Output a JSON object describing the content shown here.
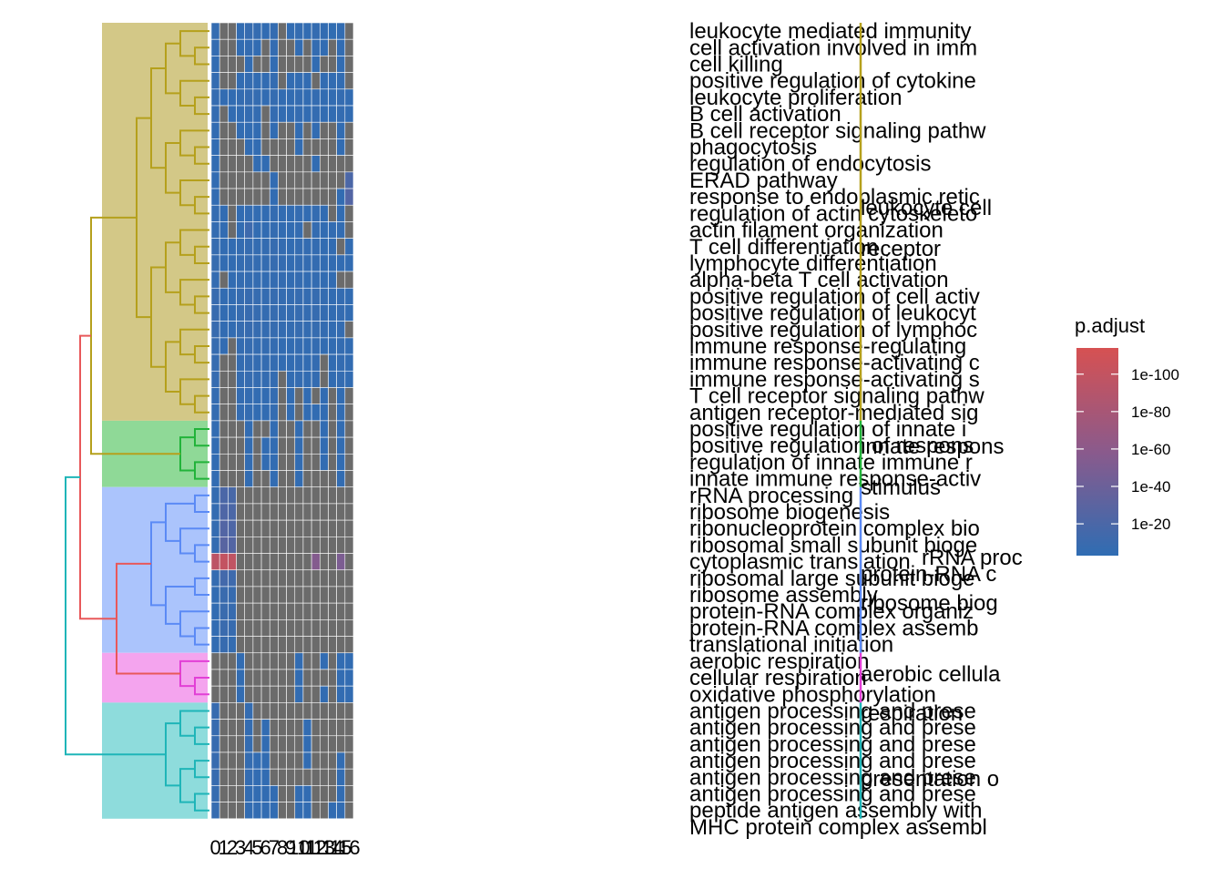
{
  "chart_data": {
    "type": "heatmap",
    "columns": [
      "0",
      "1",
      "2",
      "3",
      "4",
      "5",
      "6",
      "7",
      "8",
      "9",
      "10",
      "11",
      "12",
      "13",
      "14",
      "15",
      "16"
    ],
    "rows": [
      "leukocyte mediated immunity",
      "cell activation involved in imm",
      "cell killing",
      "positive regulation of cytokine",
      "leukocyte proliferation",
      "B cell activation",
      "B cell receptor signaling pathw",
      "phagocytosis",
      "regulation of endocytosis",
      "ERAD pathway",
      "response to endoplasmic retic",
      "regulation of actin cytoskeleto",
      "actin filament organization",
      "T cell differentiation",
      "lymphocyte differentiation",
      "alpha-beta T cell activation",
      "positive regulation of cell activ",
      "positive regulation of leukocyt",
      "positive regulation of lymphoc",
      "immune response-regulating",
      "immune response-activating c",
      "immune response-activating s",
      "T cell receptor signaling pathw",
      "antigen receptor-mediated sig",
      "positive regulation of innate i",
      "positive regulation of respons",
      "regulation of innate immune r",
      "innate immune response-activ",
      "rRNA processing",
      "ribosome biogenesis",
      "ribonucleoprotein complex bio",
      "ribosomal small subunit bioge",
      "cytoplasmic translation",
      "ribosomal large subunit bioge",
      "ribosome assembly",
      "protein-RNA complex organiz",
      "protein-RNA complex assemb",
      "translational initiation",
      "aerobic respiration",
      "cellular respiration",
      "oxidative phosphorylation",
      "antigen processing and prese",
      "antigen processing and prese",
      "antigen processing and prese",
      "antigen processing and prese",
      "antigen processing and prese",
      "antigen processing and prese",
      "peptide antigen assembly with",
      "MHC protein complex assembl"
    ],
    "cluster_labels": [
      "leukocyte cell",
      "receptor",
      "innate respons",
      "stimulus",
      "rRNA proc",
      "protein-RNA c",
      "ribosome biog",
      "aerobic cellula",
      "respiration",
      "presentation o"
    ],
    "values": [
      [
        1e-06,
        null,
        null,
        1e-05,
        1e-07,
        1e-06,
        1e-05,
        1e-06,
        null,
        1e-05,
        1e-06,
        1e-05,
        1e-06,
        1e-05,
        0.0001,
        1e-05,
        null
      ],
      [
        1e-06,
        null,
        null,
        1e-05,
        1e-06,
        1e-05,
        null,
        1e-06,
        null,
        null,
        1e-05,
        null,
        1e-06,
        1e-05,
        null,
        1e-05,
        null
      ],
      [
        1e-05,
        null,
        null,
        null,
        1e-05,
        null,
        null,
        1e-05,
        null,
        null,
        null,
        null,
        1e-05,
        null,
        null,
        1e-05,
        null
      ],
      [
        1e-06,
        null,
        null,
        1e-05,
        1e-06,
        1e-05,
        1e-05,
        1e-06,
        null,
        1e-05,
        1e-05,
        1e-05,
        null,
        1e-05,
        1e-05,
        1e-05,
        null
      ],
      [
        1e-06,
        1e-05,
        1e-05,
        1e-06,
        1e-07,
        1e-06,
        1e-05,
        1e-06,
        1e-05,
        1e-05,
        1e-06,
        1e-05,
        1e-06,
        1e-05,
        1e-05,
        1e-06,
        1e-05
      ],
      [
        1e-06,
        null,
        1e-05,
        1e-05,
        1e-06,
        1e-06,
        null,
        1e-06,
        1e-05,
        1e-05,
        1e-06,
        1e-05,
        1e-06,
        1e-05,
        1e-05,
        1e-06,
        1e-05
      ],
      [
        1e-05,
        null,
        null,
        1e-05,
        1e-05,
        1e-05,
        null,
        1e-05,
        null,
        null,
        1e-05,
        null,
        1e-05,
        null,
        null,
        1e-05,
        null
      ],
      [
        1e-05,
        null,
        null,
        null,
        1e-05,
        1e-05,
        null,
        null,
        null,
        null,
        1e-05,
        null,
        null,
        null,
        null,
        1e-05,
        null
      ],
      [
        1e-05,
        null,
        null,
        null,
        null,
        1e-05,
        1e-05,
        null,
        null,
        null,
        null,
        null,
        1e-05,
        null,
        null,
        null,
        null
      ],
      [
        1e-05,
        null,
        null,
        null,
        null,
        null,
        null,
        1e-05,
        null,
        null,
        null,
        null,
        null,
        null,
        null,
        null,
        1e-20
      ],
      [
        1e-05,
        null,
        null,
        null,
        null,
        null,
        null,
        1e-05,
        null,
        null,
        null,
        null,
        null,
        null,
        null,
        1e-05,
        1e-25
      ],
      [
        1e-06,
        1e-05,
        null,
        1e-05,
        1e-06,
        1e-05,
        1e-05,
        1e-06,
        1e-05,
        1e-05,
        1e-06,
        1e-05,
        1e-06,
        1e-05,
        null,
        1e-05,
        null
      ],
      [
        1e-06,
        1e-05,
        null,
        1e-05,
        1e-12,
        1e-05,
        1e-05,
        1e-06,
        1e-05,
        1e-05,
        1e-06,
        null,
        1e-06,
        1e-05,
        1e-05,
        1e-05,
        null
      ],
      [
        1e-07,
        1e-05,
        1e-05,
        1e-06,
        1e-07,
        1e-06,
        1e-06,
        1e-07,
        1e-06,
        1e-05,
        1e-06,
        1e-06,
        1e-06,
        1e-05,
        1e-05,
        null,
        1e-05
      ],
      [
        1e-07,
        1e-05,
        1e-05,
        1e-06,
        1e-07,
        1e-06,
        1e-06,
        1e-07,
        1e-06,
        1e-05,
        1e-06,
        1e-06,
        1e-06,
        1e-05,
        1e-05,
        1e-05,
        1e-05
      ],
      [
        1e-06,
        null,
        1e-05,
        1e-06,
        1e-06,
        1e-06,
        1e-05,
        1e-06,
        1e-06,
        1e-05,
        1e-06,
        1e-05,
        1e-06,
        1e-05,
        1e-05,
        null,
        null
      ],
      [
        1e-08,
        1e-05,
        1e-05,
        1e-07,
        1e-08,
        1e-07,
        1e-06,
        1e-07,
        1e-06,
        1e-06,
        1e-07,
        1e-06,
        1e-07,
        1e-06,
        1e-05,
        1e-06,
        1e-05
      ],
      [
        1e-08,
        1e-05,
        1e-05,
        1e-07,
        1e-08,
        1e-07,
        1e-06,
        1e-07,
        1e-06,
        1e-06,
        1e-07,
        1e-06,
        1e-07,
        1e-06,
        1e-05,
        1e-06,
        1e-05
      ],
      [
        1e-08,
        1e-05,
        1e-05,
        1e-07,
        1e-08,
        1e-07,
        1e-06,
        1e-07,
        1e-06,
        1e-06,
        1e-07,
        1e-06,
        1e-07,
        1e-06,
        1e-05,
        1e-06,
        null
      ],
      [
        1e-07,
        1e-05,
        null,
        1e-06,
        1e-07,
        1e-06,
        1e-06,
        1e-06,
        1e-05,
        1e-05,
        1e-06,
        1e-05,
        1e-06,
        1e-05,
        1e-05,
        1e-06,
        1e-05
      ],
      [
        1e-07,
        null,
        null,
        1e-06,
        1e-07,
        1e-06,
        1e-06,
        1e-06,
        1e-05,
        1e-05,
        1e-06,
        1e-05,
        1e-06,
        null,
        1e-05,
        1e-06,
        1e-05
      ],
      [
        1e-07,
        null,
        null,
        1e-06,
        1e-07,
        1e-06,
        1e-06,
        1e-06,
        null,
        1e-05,
        1e-06,
        1e-05,
        1e-06,
        null,
        1e-05,
        1e-06,
        1e-05
      ],
      [
        1e-06,
        null,
        null,
        1e-06,
        1e-06,
        1e-05,
        1e-05,
        1e-06,
        null,
        1e-05,
        null,
        1e-05,
        null,
        1e-05,
        null,
        1e-05,
        null
      ],
      [
        1e-06,
        null,
        null,
        1e-06,
        1e-06,
        1e-05,
        1e-05,
        1e-06,
        null,
        1e-05,
        null,
        1e-05,
        1e-05,
        1e-05,
        null,
        1e-05,
        null
      ],
      [
        1e-05,
        null,
        null,
        null,
        1e-05,
        null,
        null,
        1e-05,
        null,
        null,
        1e-05,
        null,
        null,
        1e-05,
        null,
        1e-05,
        null
      ],
      [
        1e-05,
        null,
        null,
        null,
        1e-05,
        null,
        1e-05,
        1e-05,
        null,
        null,
        1e-05,
        null,
        null,
        1e-05,
        null,
        1e-05,
        null
      ],
      [
        1e-05,
        null,
        null,
        null,
        1e-05,
        null,
        1e-05,
        1e-05,
        null,
        null,
        1e-05,
        null,
        null,
        1e-05,
        null,
        1e-05,
        null
      ],
      [
        1e-05,
        null,
        null,
        null,
        1e-05,
        null,
        null,
        1e-05,
        null,
        null,
        1e-05,
        null,
        null,
        null,
        null,
        1e-05,
        null
      ],
      [
        1e-06,
        1e-20,
        1e-18,
        null,
        null,
        null,
        null,
        null,
        null,
        null,
        null,
        null,
        null,
        null,
        null,
        null,
        null
      ],
      [
        1e-06,
        1e-22,
        1e-20,
        null,
        null,
        null,
        null,
        null,
        null,
        null,
        null,
        null,
        null,
        null,
        null,
        null,
        null
      ],
      [
        1e-06,
        1e-25,
        1e-22,
        null,
        null,
        null,
        null,
        null,
        null,
        null,
        null,
        null,
        null,
        null,
        null,
        null,
        null
      ],
      [
        1e-06,
        1e-28,
        1e-25,
        null,
        null,
        null,
        null,
        null,
        null,
        null,
        null,
        null,
        null,
        null,
        null,
        null,
        null
      ],
      [
        1e-95,
        1e-100,
        1e-98,
        null,
        null,
        null,
        null,
        null,
        null,
        null,
        null,
        null,
        1e-55,
        null,
        null,
        1e-50,
        null
      ],
      [
        1e-06,
        1e-15,
        1e-12,
        null,
        null,
        null,
        null,
        null,
        null,
        null,
        null,
        null,
        null,
        null,
        null,
        null,
        null
      ],
      [
        1e-05,
        1e-10,
        1e-08,
        null,
        null,
        null,
        null,
        null,
        null,
        null,
        null,
        null,
        null,
        null,
        null,
        null,
        null
      ],
      [
        1e-05,
        1e-10,
        1e-08,
        null,
        null,
        null,
        null,
        null,
        null,
        null,
        null,
        null,
        null,
        null,
        null,
        null,
        null
      ],
      [
        1e-05,
        1e-10,
        1e-08,
        null,
        null,
        null,
        null,
        null,
        null,
        null,
        null,
        null,
        null,
        null,
        null,
        null,
        null
      ],
      [
        1e-05,
        1e-08,
        1e-06,
        null,
        null,
        null,
        null,
        null,
        null,
        null,
        null,
        null,
        null,
        null,
        null,
        null,
        null
      ],
      [
        null,
        null,
        null,
        1e-05,
        null,
        null,
        null,
        null,
        null,
        null,
        1e-05,
        null,
        null,
        1e-05,
        null,
        1e-05,
        1e-05
      ],
      [
        null,
        null,
        null,
        1e-05,
        null,
        null,
        null,
        null,
        null,
        null,
        1e-05,
        null,
        null,
        null,
        null,
        1e-05,
        1e-05
      ],
      [
        null,
        null,
        null,
        1e-05,
        null,
        null,
        null,
        null,
        null,
        null,
        1e-05,
        null,
        null,
        1e-05,
        null,
        1e-05,
        1e-05
      ],
      [
        1e-08,
        null,
        null,
        null,
        1e-06,
        null,
        null,
        null,
        null,
        null,
        null,
        null,
        null,
        null,
        null,
        null,
        null
      ],
      [
        1e-08,
        null,
        null,
        null,
        1e-06,
        null,
        1e-05,
        null,
        null,
        null,
        null,
        1e-05,
        null,
        null,
        null,
        null,
        null
      ],
      [
        1e-08,
        null,
        null,
        null,
        1e-06,
        null,
        1e-05,
        null,
        null,
        null,
        null,
        1e-05,
        null,
        null,
        null,
        null,
        null
      ],
      [
        1e-08,
        null,
        null,
        null,
        1e-06,
        1e-05,
        1e-05,
        null,
        null,
        null,
        null,
        1e-05,
        null,
        null,
        null,
        1e-05,
        null
      ],
      [
        1e-08,
        null,
        null,
        null,
        1e-06,
        1e-05,
        1e-05,
        null,
        null,
        null,
        null,
        null,
        null,
        null,
        null,
        1e-05,
        null
      ],
      [
        1e-07,
        null,
        null,
        null,
        1e-05,
        1e-05,
        1e-05,
        1e-05,
        null,
        null,
        1e-05,
        1e-05,
        null,
        null,
        null,
        1e-05,
        null
      ],
      [
        1e-07,
        null,
        null,
        null,
        1e-05,
        1e-05,
        1e-05,
        1e-05,
        null,
        null,
        1e-05,
        1e-05,
        null,
        null,
        1e-05,
        1e-05,
        null
      ]
    ],
    "na_color": "#6b6b6b",
    "colors": [
      "#d65152",
      "#2f6db3"
    ],
    "clim": [
      1e-114,
      0.001
    ],
    "legend": {
      "title": "p.adjust",
      "ticks": [
        1e-100,
        1e-80,
        1e-60,
        1e-40,
        1e-20
      ]
    }
  }
}
